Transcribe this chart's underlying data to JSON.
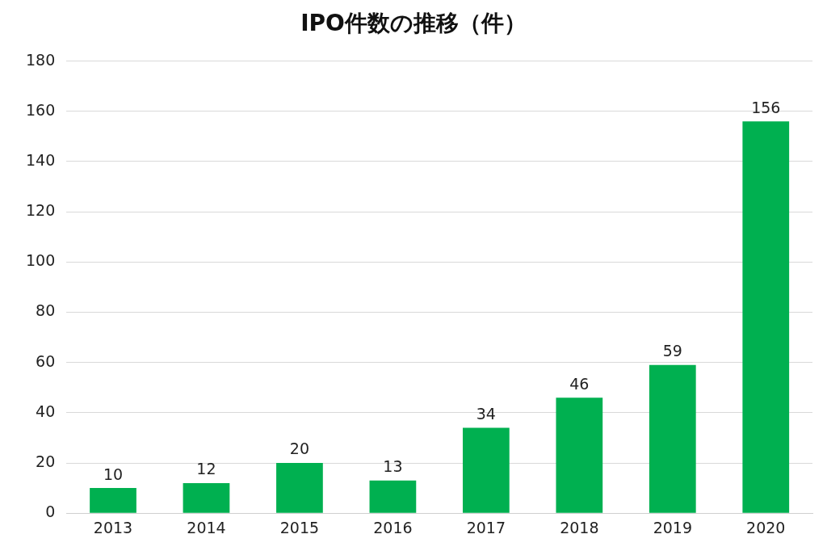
{
  "chart_data": {
    "type": "bar",
    "title": "IPO件数の推移（件）",
    "categories": [
      "2013",
      "2014",
      "2015",
      "2016",
      "2017",
      "2018",
      "2019",
      "2020"
    ],
    "values": [
      10,
      12,
      20,
      13,
      34,
      46,
      59,
      156
    ],
    "color": "#00b050",
    "ylim": [
      0,
      180
    ],
    "yticks": [
      0,
      20,
      40,
      60,
      80,
      100,
      120,
      140,
      160,
      180
    ],
    "grid": "y",
    "legend": false,
    "data_labels": true
  }
}
